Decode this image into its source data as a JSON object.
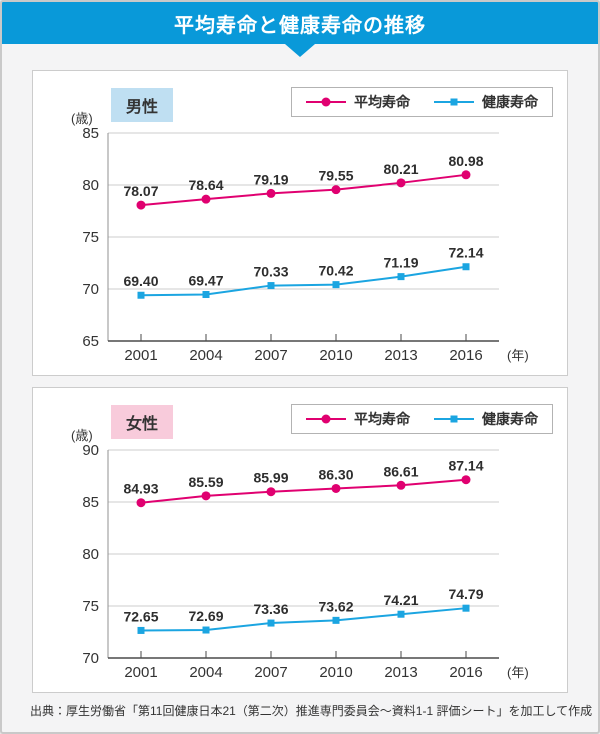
{
  "header": {
    "title": "平均寿命と健康寿命の推移"
  },
  "colors": {
    "header_blue": "#0999d9",
    "life_expectancy_pink": "#e00070",
    "healthy_life_blue": "#1ba5e1",
    "male_badge_bg": "#bfdff2",
    "female_badge_bg": "#f8cbdb",
    "grid_gray": "#cccccc",
    "axis_dark": "#4a4a4a",
    "axis_light": "#909090"
  },
  "chart_data": [
    {
      "type": "line",
      "gender_label": "男性",
      "categories": [
        "2001",
        "2004",
        "2007",
        "2010",
        "2013",
        "2016"
      ],
      "series": [
        {
          "name": "平均寿命",
          "color": "#e00070",
          "marker": "circle",
          "values": [
            78.07,
            78.64,
            79.19,
            79.55,
            80.21,
            80.98
          ]
        },
        {
          "name": "健康寿命",
          "color": "#1ba5e1",
          "marker": "square",
          "values": [
            69.4,
            69.47,
            70.33,
            70.42,
            71.19,
            72.14
          ]
        }
      ],
      "ylim": [
        65,
        85
      ],
      "yticks": [
        65,
        70,
        75,
        80,
        85
      ],
      "ylabel": "(歳)",
      "xlabel": "(年)",
      "grid": true,
      "legend_position": "top-right"
    },
    {
      "type": "line",
      "gender_label": "女性",
      "categories": [
        "2001",
        "2004",
        "2007",
        "2010",
        "2013",
        "2016"
      ],
      "series": [
        {
          "name": "平均寿命",
          "color": "#e00070",
          "marker": "circle",
          "values": [
            84.93,
            85.59,
            85.99,
            86.3,
            86.61,
            87.14
          ]
        },
        {
          "name": "健康寿命",
          "color": "#1ba5e1",
          "marker": "square",
          "values": [
            72.65,
            72.69,
            73.36,
            73.62,
            74.21,
            74.79
          ]
        }
      ],
      "ylim": [
        70,
        90
      ],
      "yticks": [
        70,
        75,
        80,
        85,
        90
      ],
      "ylabel": "(歳)",
      "xlabel": "(年)",
      "grid": true,
      "legend_position": "top-right"
    }
  ],
  "footer": {
    "source": "出典：厚生労働省「第11回健康日本21（第二次）推進専門委員会～資料1-1 評価シート」を加工して作成"
  }
}
